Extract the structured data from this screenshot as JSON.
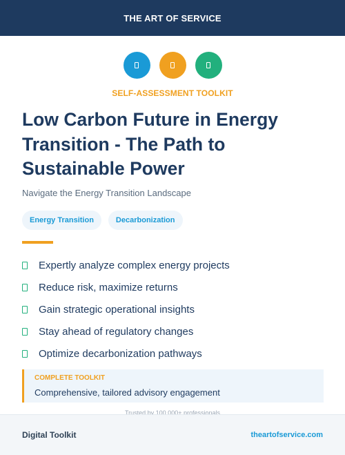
{
  "header": {
    "brand": "THE ART OF SERVICE"
  },
  "icons": [
    {
      "name": "blue-badge-icon",
      "color": "#1a9ad6"
    },
    {
      "name": "orange-badge-icon",
      "color": "#f0a020"
    },
    {
      "name": "green-badge-icon",
      "color": "#22b07d"
    }
  ],
  "kicker": "SELF-ASSESSMENT TOOLKIT",
  "title": "Low Carbon Future in Energy Transition - The Path to Sustainable Power",
  "subtitle": "Navigate the Energy Transition Landscape",
  "tags": [
    "Energy Transition",
    "Decarbonization"
  ],
  "features": [
    "Expertly analyze complex energy projects",
    "Reduce risk, maximize returns",
    "Gain strategic operational insights",
    "Stay ahead of regulatory changes",
    "Optimize decarbonization pathways"
  ],
  "callout": {
    "label": "COMPLETE TOOLKIT",
    "description": "Comprehensive, tailored advisory engagement"
  },
  "trusted": "Trusted by 100,000+ professionals",
  "footer": {
    "left": "Digital Toolkit",
    "right": "theartofservice.com"
  },
  "colors": {
    "navy": "#1e3a5f",
    "accent_orange": "#f0a020",
    "accent_blue": "#1a9ad6",
    "accent_green": "#22b07d"
  }
}
